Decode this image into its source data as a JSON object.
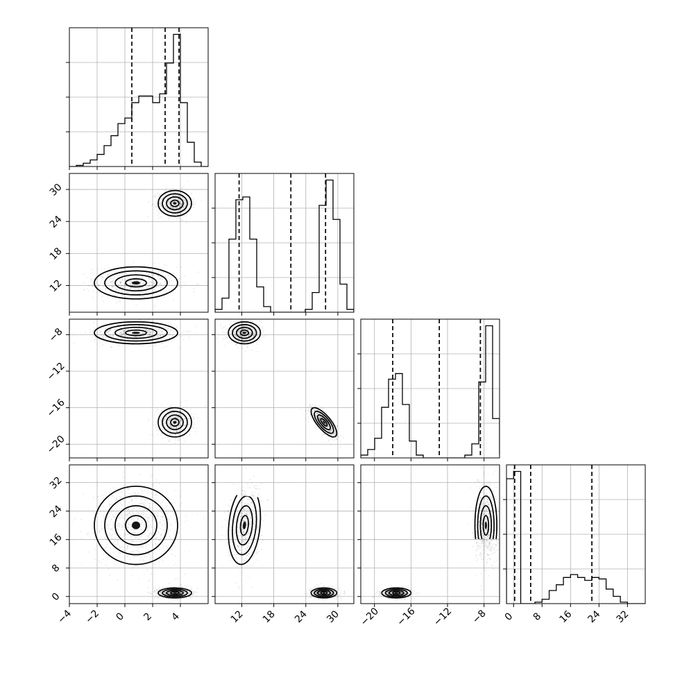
{
  "chart_data": {
    "type": "corner",
    "n_params": 4,
    "params": [
      {
        "name": "",
        "range": [
          -4,
          6
        ],
        "ticks": [
          -4,
          -2,
          0,
          2,
          4
        ],
        "tick_labels": [
          "−4",
          "−2",
          "0",
          "2",
          "4"
        ]
      },
      {
        "name": "",
        "range": [
          7,
          33
        ],
        "ticks": [
          12,
          18,
          24,
          30
        ],
        "tick_labels": [
          "12",
          "18",
          "24",
          "30"
        ]
      },
      {
        "name": "",
        "range": [
          -21.5,
          -6.3
        ],
        "ticks": [
          -20,
          -16,
          -12,
          -8
        ],
        "tick_labels": [
          "−20",
          "−16",
          "−12",
          "−8"
        ]
      },
      {
        "name": "",
        "range": [
          -2,
          37
        ],
        "ticks": [
          0,
          8,
          16,
          24,
          32
        ],
        "tick_labels": [
          "0",
          "8",
          "16",
          "24",
          "32"
        ]
      }
    ],
    "histograms": [
      {
        "bins": [
          -4.0,
          -3.5,
          -3.0,
          -2.5,
          -2.0,
          -1.5,
          -1.0,
          -0.5,
          0.0,
          0.5,
          1.0,
          1.5,
          2.0,
          2.5,
          3.0,
          3.5,
          4.0,
          4.5,
          5.0,
          5.5,
          6.0
        ],
        "counts": [
          0,
          0.5,
          1.5,
          3,
          5.5,
          9.5,
          14,
          19.5,
          22,
          29,
          32,
          32,
          29,
          33,
          47,
          60,
          29,
          11,
          2,
          0
        ],
        "quantiles": [
          0.5,
          2.9,
          3.9
        ]
      },
      {
        "bins": [
          7.0,
          8.3,
          9.6,
          10.9,
          12.2,
          13.5,
          14.8,
          16.1,
          17.4,
          18.7,
          20.0,
          21.3,
          22.6,
          23.9,
          25.2,
          26.5,
          27.8,
          29.1,
          30.4,
          31.7,
          33.0
        ],
        "counts": [
          1,
          5,
          26,
          40,
          41,
          26,
          9,
          2,
          0,
          0,
          0,
          0,
          0,
          1,
          7,
          38,
          47,
          33,
          10,
          1
        ],
        "quantiles": [
          11.5,
          21.2,
          27.7
        ]
      },
      {
        "bins": [
          -21.5,
          -20.74,
          -19.98,
          -19.22,
          -18.46,
          -17.7,
          -16.94,
          -16.18,
          -15.42,
          -14.66,
          -13.9,
          -13.14,
          -12.38,
          -11.62,
          -10.86,
          -10.1,
          -9.34,
          -8.58,
          -7.82,
          -7.06,
          -6.3
        ],
        "counts": [
          1,
          3,
          7,
          18,
          28,
          30,
          19,
          6,
          1,
          0,
          0,
          0,
          0,
          0,
          0,
          1,
          5,
          27,
          47,
          14,
          1
        ],
        "quantiles": [
          -18.0,
          -12.9,
          -8.4
        ]
      },
      {
        "bins": [
          -2.0,
          0.0,
          2.0,
          4.0,
          6.0,
          8.0,
          10.0,
          12.0,
          14.0,
          16.0,
          18.0,
          20.0,
          22.0,
          24.0,
          26.0,
          28.0,
          30.0,
          32.0,
          34.0,
          36.0,
          37.0
        ],
        "counts": [
          86,
          91,
          0,
          0,
          1,
          3,
          9,
          13,
          18,
          20,
          18,
          16,
          18,
          17,
          10,
          5,
          1,
          0,
          0,
          0
        ],
        "quantiles": [
          0.3,
          4.8,
          22.0
        ]
      }
    ],
    "clusters": [
      {
        "mean": [
          0.8,
          12.5,
          -7.8,
          20.0
        ],
        "sd": [
          1.5,
          1.5,
          0.6,
          5.5
        ],
        "corr": [
          [
            1,
            2,
            0.0
          ],
          [
            1,
            3,
            0.0
          ],
          [
            2,
            3,
            0.0
          ],
          [
            1,
            4,
            0.0
          ],
          [
            2,
            4,
            0.2
          ],
          [
            3,
            4,
            0.0
          ]
        ]
      },
      {
        "mean": [
          3.6,
          27.4,
          -17.6,
          1.0
        ],
        "sd": [
          0.6,
          1.2,
          0.8,
          0.7
        ],
        "corr": [
          [
            1,
            2,
            0.0
          ],
          [
            1,
            3,
            0.0
          ],
          [
            2,
            3,
            -0.75
          ],
          [
            1,
            4,
            0.0
          ],
          [
            2,
            4,
            0.0
          ],
          [
            3,
            4,
            0.0
          ]
        ]
      }
    ]
  }
}
